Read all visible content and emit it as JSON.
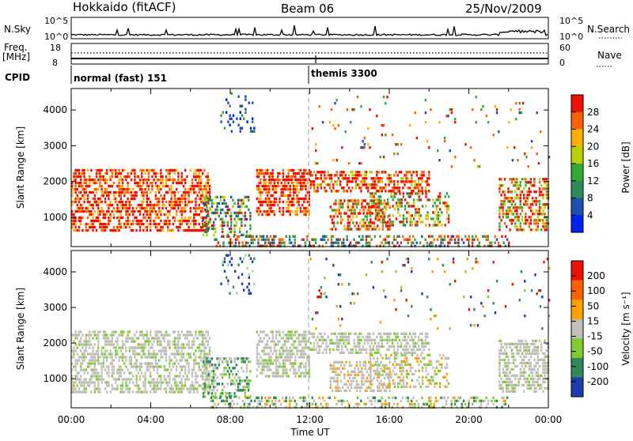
{
  "header": {
    "station": "Hokkaido (fitACF)",
    "beam": "Beam 06",
    "date": "25/Nov/2009"
  },
  "noise_strip": {
    "left_label": "N.Sky",
    "right_label": "N.Search",
    "left_ticks": [
      "10^5",
      "10^0"
    ],
    "right_ticks": [
      "10^5",
      "10^0"
    ]
  },
  "freq_strip": {
    "left_label_1": "Freq.",
    "left_label_2": "[MHz]",
    "right_label": "Nave",
    "left_ticks": [
      "18",
      "8"
    ],
    "right_ticks": [
      "60",
      "0"
    ]
  },
  "cpid_strip": {
    "label": "CPID",
    "segments": [
      {
        "name": "normal (fast) 151",
        "start_hour": 0,
        "end_hour": 12
      },
      {
        "name": "themis 3300",
        "start_hour": 12,
        "end_hour": 24
      }
    ]
  },
  "colors": {
    "power": [
      "#0020f0",
      "#1e4fb0",
      "#2f8a5a",
      "#33aa33",
      "#b8d000",
      "#ffb000",
      "#ff6000",
      "#ee1100"
    ],
    "velocity": [
      "#ee1100",
      "#ff6000",
      "#ffa000",
      "#c0c0b8",
      "#80cc30",
      "#2f8a5a",
      "#1e3cb0"
    ]
  },
  "chart_data": [
    {
      "type": "heatmap",
      "name_panel": "power",
      "xlabel": "",
      "ylabel": "Slant Range [km]",
      "xlim": [
        0,
        24
      ],
      "ylim": [
        180,
        4600
      ],
      "yticks": [
        "1000",
        "2000",
        "3000",
        "4000"
      ],
      "colorbar_label": "Power [dB]",
      "colorbar_ticks": [
        "4",
        "8",
        "12",
        "16",
        "20",
        "24",
        "28"
      ]
    },
    {
      "type": "heatmap",
      "name_panel": "velocity",
      "xlabel": "Time UT",
      "ylabel": "Slant Range [km]",
      "xlim": [
        0,
        24
      ],
      "ylim": [
        180,
        4600
      ],
      "xticks": [
        "00:00",
        "04:00",
        "08:00",
        "12:00",
        "16:00",
        "20:00",
        "00:00"
      ],
      "yticks": [
        "1000",
        "2000",
        "3000",
        "4000"
      ],
      "colorbar_label": "Velocity [m s⁻¹]",
      "colorbar_ticks": [
        "200",
        "100",
        "50",
        "15",
        "-15",
        "-50",
        "-100",
        "-200"
      ]
    }
  ]
}
